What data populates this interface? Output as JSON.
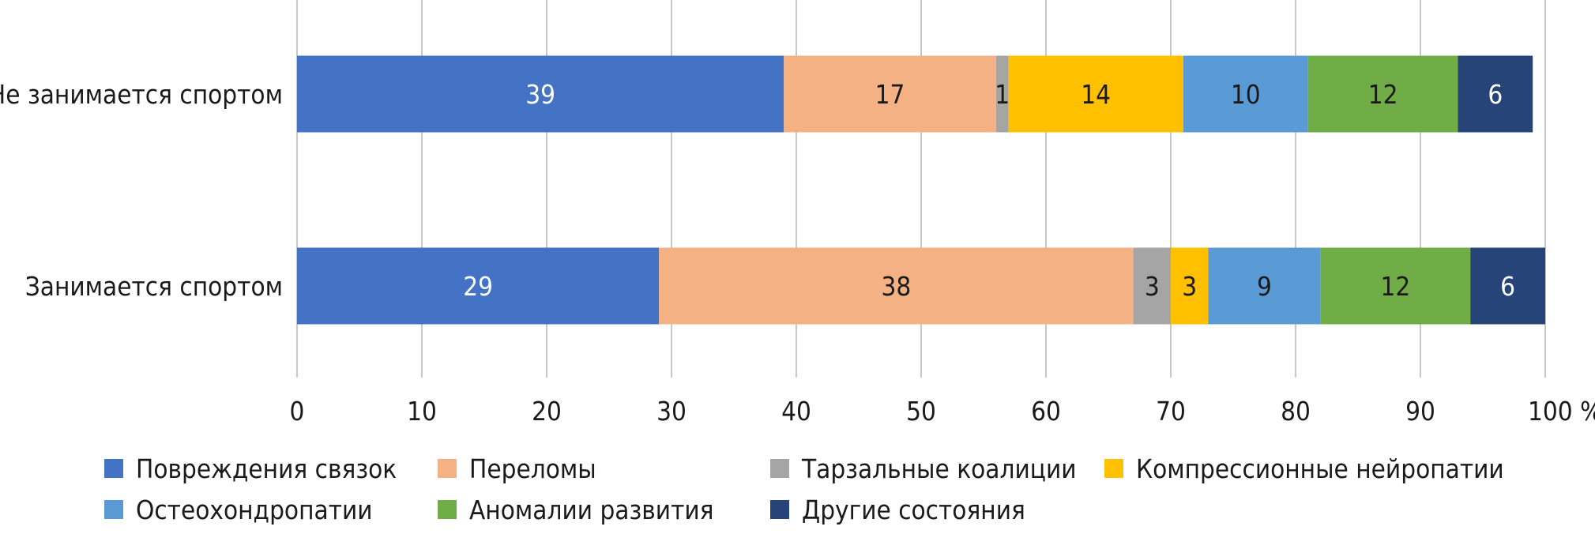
{
  "chart_data": {
    "type": "bar",
    "orientation": "horizontal",
    "stacked": true,
    "categories": [
      "Не занимается спортом",
      "Занимается спортом"
    ],
    "series": [
      {
        "name": "Повреждения связок",
        "color": "#4472C4",
        "label_color": "#ffffff",
        "values": [
          39,
          29
        ]
      },
      {
        "name": "Переломы",
        "color": "#F4B183",
        "label_color": "#1a1a1a",
        "values": [
          17,
          38
        ]
      },
      {
        "name": "Тарзальные коалиции",
        "color": "#A5A5A5",
        "label_color": "#1a1a1a",
        "values": [
          1,
          3
        ]
      },
      {
        "name": "Компрессионные нейропатии",
        "color": "#FFC000",
        "label_color": "#1a1a1a",
        "values": [
          14,
          3
        ]
      },
      {
        "name": "Остеохондропатии",
        "color": "#5B9BD5",
        "label_color": "#1a1a1a",
        "values": [
          10,
          9
        ]
      },
      {
        "name": "Аномалии развития",
        "color": "#70AD47",
        "label_color": "#1a1a1a",
        "values": [
          12,
          12
        ]
      },
      {
        "name": "Другие состояния",
        "color": "#264478",
        "label_color": "#ffffff",
        "values": [
          6,
          6
        ]
      }
    ],
    "xlim": [
      0,
      100
    ],
    "xticks": [
      0,
      10,
      20,
      30,
      40,
      50,
      60,
      70,
      80,
      90,
      100
    ],
    "xtick_labels": [
      "0",
      "10",
      "20",
      "30",
      "40",
      "50",
      "60",
      "70",
      "80",
      "90",
      "100 %"
    ],
    "grid": true,
    "legend_position": "bottom"
  }
}
